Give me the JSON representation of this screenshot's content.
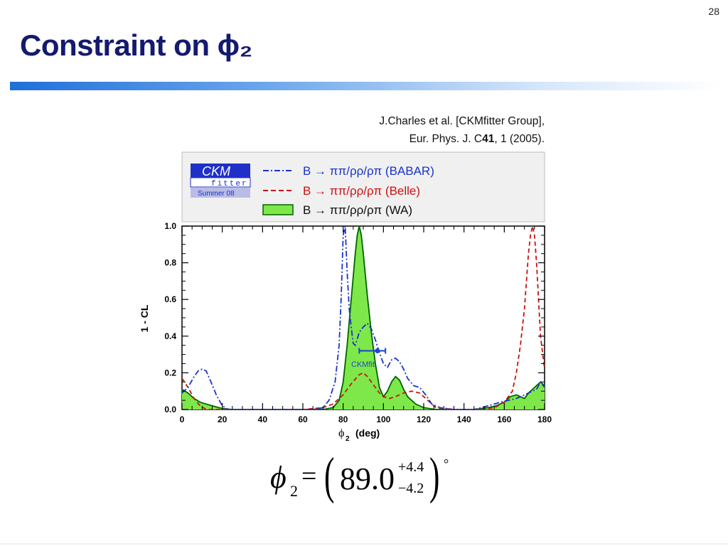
{
  "slide": {
    "page_number": "28",
    "title": "Constraint on ϕ₂",
    "citation_line1": "J.Charles et al. [CKMfitter Group],",
    "citation_line2_pre": "Eur. Phys. J. C",
    "citation_line2_bold": "41",
    "citation_line2_post": ", 1 (2005)."
  },
  "formula": {
    "symbol": "ϕ",
    "subscript": "2",
    "equals": "=",
    "central_value": "89.0",
    "plus_error": "+4.4",
    "minus_error": "−4.2",
    "unit": "°"
  },
  "chart_data": {
    "type": "line",
    "logo": {
      "line1": "CKM",
      "line2": "fitter",
      "line3": "Summer 08"
    },
    "xlabel_main": "ϕ",
    "xlabel_sub": "2",
    "xlabel_unit": "(deg)",
    "ylabel": "1 - CL",
    "xlim": [
      0,
      180
    ],
    "ylim": [
      0,
      1.0
    ],
    "x_ticks": [
      0,
      20,
      40,
      60,
      80,
      100,
      120,
      140,
      160,
      180
    ],
    "y_ticks": [
      "0.0",
      "0.2",
      "0.4",
      "0.6",
      "0.8",
      "1.0"
    ],
    "annotation": "CKMfit",
    "ckmfit_interval": {
      "center": 97,
      "low": 88,
      "high": 101,
      "y": 0.32
    },
    "colors": {
      "babar": "#1a33cc",
      "belle": "#cc1111",
      "wa_fill": "#7ee84a",
      "wa_line": "#006400",
      "ckmfit": "#1a4ac4"
    },
    "series": [
      {
        "name": "B → ππ/ρρ/ρπ (BABAR)",
        "style": "dash-dot",
        "x": [
          0,
          3,
          6,
          8,
          10,
          12,
          14,
          17,
          20,
          23,
          26,
          30,
          40,
          55,
          65,
          70,
          73,
          76,
          78,
          79,
          80,
          81,
          82,
          83,
          84,
          85,
          86,
          88,
          90,
          92,
          94,
          96,
          98,
          100,
          102,
          104,
          106,
          108,
          110,
          112,
          115,
          118,
          121,
          124,
          128,
          135,
          145,
          152,
          158,
          162,
          166,
          170,
          172,
          174,
          176,
          178,
          180
        ],
        "y": [
          0.09,
          0.12,
          0.18,
          0.21,
          0.22,
          0.21,
          0.16,
          0.08,
          0.02,
          0.0,
          0.0,
          0.0,
          0.0,
          0.0,
          0.0,
          0.01,
          0.05,
          0.15,
          0.35,
          0.6,
          0.95,
          1.0,
          0.75,
          0.55,
          0.45,
          0.36,
          0.35,
          0.42,
          0.45,
          0.47,
          0.44,
          0.38,
          0.31,
          0.25,
          0.23,
          0.27,
          0.28,
          0.26,
          0.22,
          0.17,
          0.13,
          0.12,
          0.08,
          0.03,
          0.01,
          0.0,
          0.0,
          0.02,
          0.04,
          0.05,
          0.06,
          0.08,
          0.09,
          0.1,
          0.11,
          0.15,
          0.12
        ]
      },
      {
        "name": "B → ππ/ρρ/ρπ (Belle)",
        "style": "dashed",
        "x": [
          0,
          3,
          6,
          9,
          12,
          15,
          20,
          30,
          60,
          70,
          75,
          80,
          84,
          88,
          90,
          92,
          94,
          96,
          98,
          100,
          103,
          106,
          110,
          114,
          118,
          122,
          126,
          135,
          150,
          155,
          160,
          164,
          166,
          168,
          170,
          172,
          173,
          174,
          175,
          176,
          177,
          178,
          180
        ],
        "y": [
          0.17,
          0.12,
          0.06,
          0.02,
          0.0,
          0.0,
          0.0,
          0.0,
          0.0,
          0.01,
          0.03,
          0.08,
          0.14,
          0.19,
          0.2,
          0.18,
          0.15,
          0.12,
          0.09,
          0.07,
          0.06,
          0.07,
          0.09,
          0.1,
          0.09,
          0.05,
          0.01,
          0.0,
          0.0,
          0.01,
          0.04,
          0.1,
          0.2,
          0.35,
          0.55,
          0.85,
          0.95,
          1.0,
          0.95,
          0.8,
          0.6,
          0.4,
          0.22
        ]
      },
      {
        "name": "B → ππ/ρρ/ρπ (WA)",
        "style": "filled",
        "x": [
          0,
          3,
          6,
          9,
          12,
          15,
          20,
          25,
          30,
          60,
          70,
          75,
          78,
          80,
          82,
          84,
          86,
          87,
          88,
          89,
          90,
          92,
          94,
          96,
          98,
          100,
          102,
          104,
          106,
          108,
          110,
          112,
          116,
          120,
          126,
          135,
          145,
          152,
          156,
          160,
          163,
          166,
          168,
          170,
          172,
          175,
          178,
          180
        ],
        "y": [
          0.11,
          0.09,
          0.06,
          0.04,
          0.03,
          0.02,
          0.005,
          0.0,
          0.0,
          0.0,
          0.0,
          0.01,
          0.05,
          0.15,
          0.35,
          0.6,
          0.85,
          0.95,
          1.0,
          0.95,
          0.85,
          0.62,
          0.42,
          0.25,
          0.12,
          0.07,
          0.1,
          0.15,
          0.18,
          0.16,
          0.11,
          0.07,
          0.03,
          0.01,
          0.0,
          0.0,
          0.0,
          0.01,
          0.02,
          0.04,
          0.07,
          0.08,
          0.07,
          0.06,
          0.09,
          0.12,
          0.15,
          0.13
        ]
      }
    ]
  }
}
